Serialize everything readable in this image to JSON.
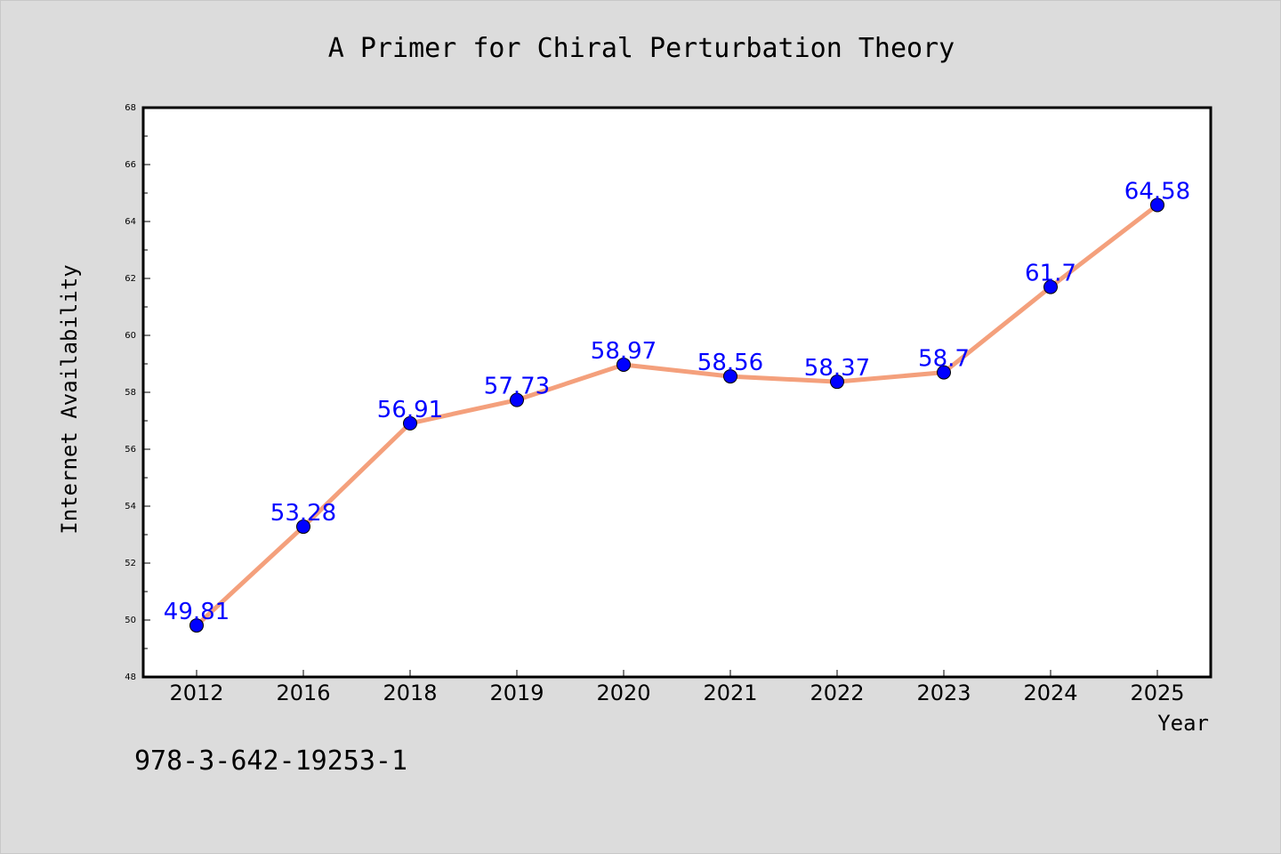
{
  "chart_data": {
    "type": "line",
    "title": "A Primer for Chiral Perturbation Theory",
    "xlabel": "Year",
    "ylabel": "Internet Availability",
    "categories": [
      "2012",
      "2016",
      "2018",
      "2019",
      "2020",
      "2021",
      "2022",
      "2023",
      "2024",
      "2025"
    ],
    "values": [
      49.81,
      53.28,
      56.91,
      57.73,
      58.97,
      58.56,
      58.37,
      58.7,
      61.7,
      64.58
    ],
    "data_labels": [
      "49.81",
      "53.28",
      "56.91",
      "57.73",
      "58.97",
      "58.56",
      "58.37",
      "58.7",
      "61.7",
      "64.58"
    ],
    "ylim": [
      48,
      68
    ],
    "yticks": [
      48,
      50,
      52,
      54,
      56,
      58,
      60,
      62,
      64,
      66,
      68
    ],
    "grid": false,
    "line_color": "#f4a07c",
    "marker_color": "#0000ff",
    "label_color": "#0000ff"
  },
  "footer": {
    "isbn": "978-3-642-19253-1"
  },
  "colors": {
    "background": "#dcdcdc",
    "plot_background": "#ffffff"
  }
}
